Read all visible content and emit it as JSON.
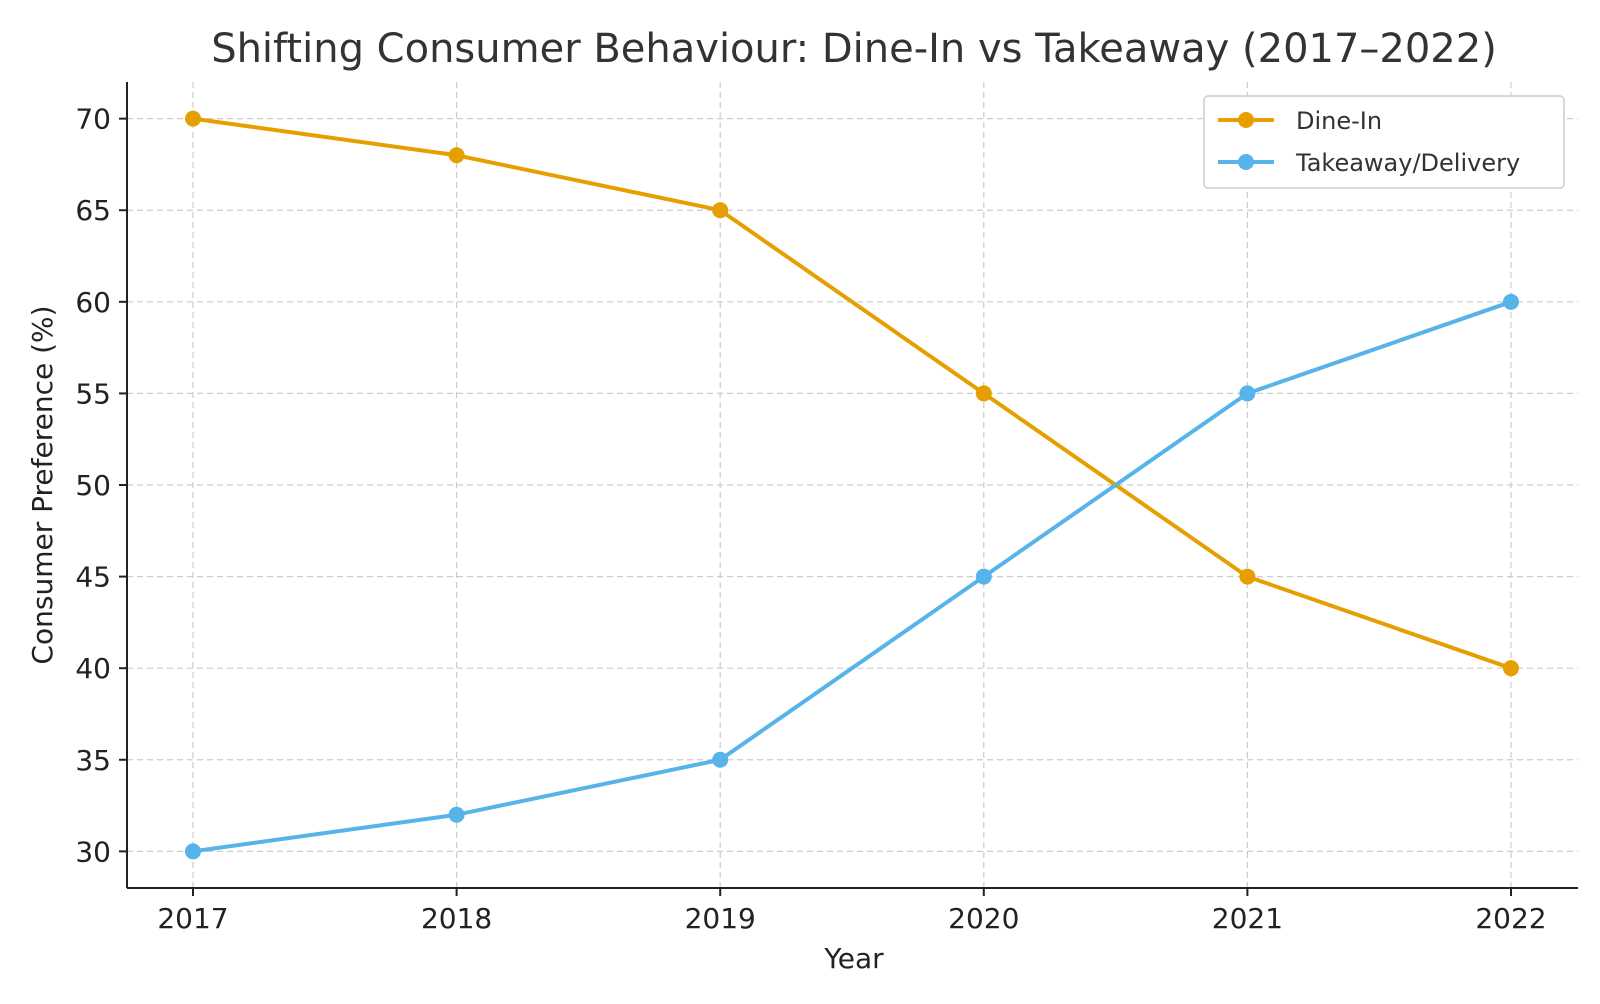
{
  "chart_data": {
    "type": "line",
    "title": "Shifting Consumer Behaviour: Dine-In vs Takeaway (2017–2022)",
    "xlabel": "Year",
    "ylabel": "Consumer Preference (%)",
    "categories": [
      "2017",
      "2018",
      "2019",
      "2020",
      "2021",
      "2022"
    ],
    "x_ticks": [
      "2017",
      "2018",
      "2019",
      "2020",
      "2021",
      "2022"
    ],
    "y_ticks": [
      "30",
      "35",
      "40",
      "45",
      "50",
      "55",
      "60",
      "65",
      "70"
    ],
    "ylim": [
      28,
      72
    ],
    "grid": true,
    "legend_position": "top-right",
    "series": [
      {
        "name": "Dine-In",
        "color": "#E69F00",
        "values": [
          70,
          68,
          65,
          55,
          45,
          40
        ]
      },
      {
        "name": "Takeaway/Delivery",
        "color": "#56B4E9",
        "values": [
          30,
          32,
          35,
          45,
          55,
          60
        ]
      }
    ]
  }
}
